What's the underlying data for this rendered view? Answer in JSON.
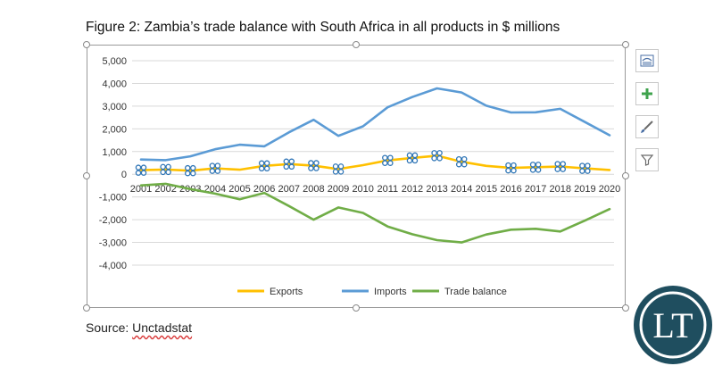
{
  "figure": {
    "title": "Figure 2: Zambia’s trade balance with South Africa in all products in $ millions",
    "source_label": "Source: ",
    "source_value": "Unctadstat"
  },
  "logo": {
    "text": "LT",
    "bg_color": "#1f4e5f",
    "ring_color": "#ffffff"
  },
  "toolbar": {
    "layout_icon": "chart-layout-icon",
    "elements_icon": "plus-icon",
    "styles_icon": "brush-icon",
    "filter_icon": "filter-icon"
  },
  "chart_data": {
    "type": "line",
    "categories": [
      "2001",
      "2002",
      "2003",
      "2004",
      "2005",
      "2006",
      "2007",
      "2008",
      "2009",
      "2010",
      "2011",
      "2012",
      "2013",
      "2014",
      "2015",
      "2016",
      "2017",
      "2018",
      "2019",
      "2020"
    ],
    "yticks": [
      -4000,
      -3000,
      -2000,
      -1000,
      0,
      1000,
      2000,
      3000,
      4000,
      5000
    ],
    "ytick_labels": [
      "-4,000",
      "-3,000",
      "-2,000",
      "-1,000",
      "0",
      "1,000",
      "2,000",
      "3,000",
      "4,000",
      "5,000"
    ],
    "ylim": [
      -4000,
      5000
    ],
    "grid": true,
    "legend": "bottom",
    "series": [
      {
        "name": "Exports",
        "color": "#ffc000",
        "values": [
          180,
          210,
          160,
          260,
          200,
          370,
          450,
          380,
          230,
          400,
          610,
          720,
          820,
          550,
          370,
          280,
          310,
          340,
          260,
          190
        ]
      },
      {
        "name": "Imports",
        "color": "#5b9bd5",
        "values": [
          650,
          620,
          790,
          1100,
          1300,
          1230,
          1850,
          2400,
          1690,
          2110,
          2950,
          3400,
          3780,
          3600,
          3020,
          2720,
          2730,
          2880,
          2300,
          1720
        ]
      },
      {
        "name": "Trade balance",
        "color": "#70ad47",
        "values": [
          -490,
          -420,
          -650,
          -850,
          -1100,
          -820,
          -1400,
          -2000,
          -1460,
          -1700,
          -2300,
          -2640,
          -2900,
          -3000,
          -2650,
          -2440,
          -2400,
          -2520,
          -2040,
          -1530
        ]
      }
    ]
  }
}
